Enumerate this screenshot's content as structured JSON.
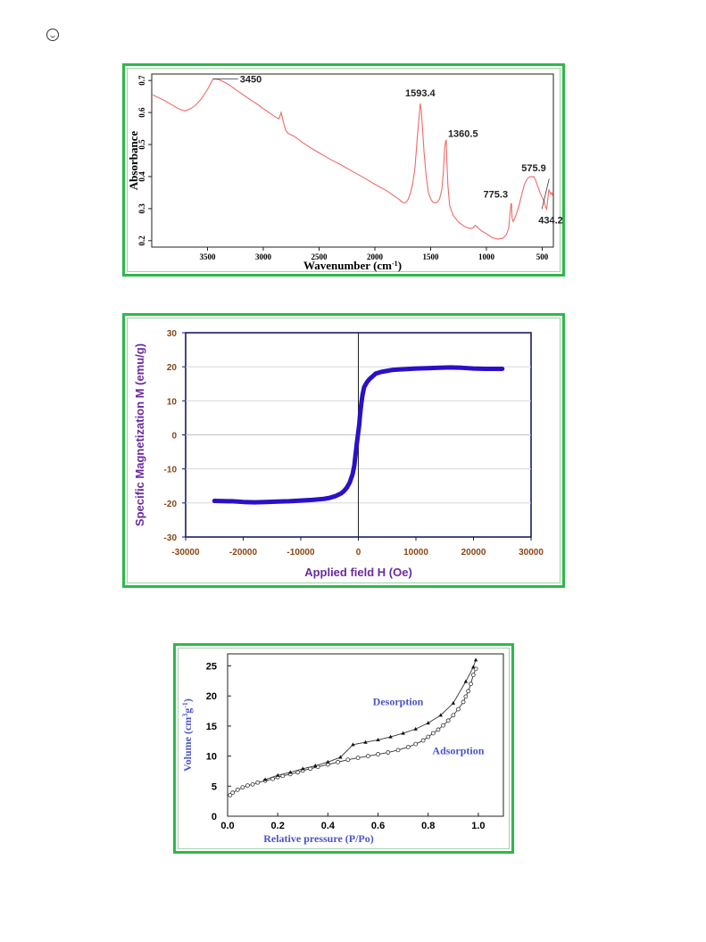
{
  "colors": {
    "frame": "#2fb84a",
    "ftir_line": "#ef6a6a",
    "vsm_line": "#2a10c8",
    "vsm_label": "#6a2a9e",
    "vsm_tick": "#8b4513",
    "bet_label": "#4a55c8"
  },
  "page_icon": "circled-smile-icon",
  "chart_data": [
    {
      "type": "line",
      "xlabel": "Wavenumber (cm",
      "xlabel_sup": "-1",
      "xlabel_end": ")",
      "ylabel": "Absorbance",
      "xlim": [
        4000,
        400
      ],
      "ylim": [
        0.18,
        0.72
      ],
      "x_ticks": [
        3500,
        3000,
        2500,
        2000,
        1500,
        1000,
        500
      ],
      "y_ticks": [
        0.2,
        0.3,
        0.4,
        0.5,
        0.6,
        0.7
      ],
      "x_tick_labels": [
        "3500",
        "3000",
        "2500",
        "2000",
        "1500",
        "1000",
        "500"
      ],
      "y_tick_labels": [
        "0.2",
        "0.3",
        "0.4",
        "0.5",
        "0.6",
        "0.7"
      ],
      "annotations": [
        {
          "text": "3450",
          "x": 3450,
          "y": 0.705
        },
        {
          "text": "1593.4",
          "x": 1593.4,
          "y": 0.628
        },
        {
          "text": "1360.5",
          "x": 1360.5,
          "y": 0.515
        },
        {
          "text": "575.9",
          "x": 575.9,
          "y": 0.4
        },
        {
          "text": "775.3",
          "x": 775.3,
          "y": 0.315
        },
        {
          "text": "434.2",
          "x": 470,
          "y": 0.36
        }
      ],
      "series": [
        {
          "x": [
            3990,
            3950,
            3900,
            3850,
            3800,
            3750,
            3700,
            3650,
            3600,
            3550,
            3500,
            3450,
            3400,
            3350,
            3300,
            3250,
            3200,
            3150,
            3100,
            3050,
            3000,
            2950,
            2900,
            2860,
            2840,
            2820,
            2800,
            2780,
            2750,
            2720,
            2700,
            2650,
            2600,
            2500,
            2400,
            2300,
            2200,
            2100,
            2000,
            1900,
            1850,
            1800,
            1780,
            1760,
            1740,
            1720,
            1700,
            1680,
            1660,
            1640,
            1620,
            1600,
            1593.4,
            1585,
            1575,
            1560,
            1540,
            1520,
            1500,
            1480,
            1460,
            1440,
            1420,
            1400,
            1385,
            1375,
            1365,
            1360.5,
            1355,
            1345,
            1330,
            1300,
            1250,
            1200,
            1150,
            1120,
            1100,
            1080,
            1050,
            1000,
            950,
            900,
            850,
            820,
            800,
            790,
            780,
            775.3,
            770,
            760,
            740,
            720,
            700,
            680,
            660,
            640,
            620,
            600,
            580,
            575.9,
            560,
            540,
            520,
            500,
            480,
            470,
            460,
            450,
            440,
            434.2,
            425,
            415,
            405
          ],
          "y": [
            0.655,
            0.648,
            0.64,
            0.63,
            0.62,
            0.61,
            0.605,
            0.612,
            0.625,
            0.645,
            0.672,
            0.705,
            0.703,
            0.695,
            0.685,
            0.672,
            0.66,
            0.648,
            0.636,
            0.625,
            0.612,
            0.6,
            0.588,
            0.58,
            0.6,
            0.57,
            0.545,
            0.535,
            0.53,
            0.525,
            0.52,
            0.507,
            0.495,
            0.474,
            0.454,
            0.436,
            0.416,
            0.397,
            0.376,
            0.357,
            0.345,
            0.333,
            0.328,
            0.322,
            0.318,
            0.32,
            0.33,
            0.35,
            0.38,
            0.43,
            0.52,
            0.6,
            0.628,
            0.61,
            0.56,
            0.48,
            0.4,
            0.35,
            0.33,
            0.32,
            0.318,
            0.32,
            0.33,
            0.36,
            0.42,
            0.49,
            0.51,
            0.515,
            0.45,
            0.37,
            0.31,
            0.28,
            0.258,
            0.245,
            0.238,
            0.24,
            0.248,
            0.242,
            0.232,
            0.222,
            0.21,
            0.205,
            0.208,
            0.22,
            0.24,
            0.28,
            0.315,
            0.315,
            0.27,
            0.26,
            0.275,
            0.295,
            0.32,
            0.35,
            0.375,
            0.39,
            0.398,
            0.4,
            0.399,
            0.4,
            0.39,
            0.37,
            0.35,
            0.335,
            0.32,
            0.305,
            0.298,
            0.33,
            0.36,
            0.355,
            0.345,
            0.35,
            0.34
          ]
        }
      ]
    },
    {
      "type": "line",
      "xlabel": "Applied field H (Oe)",
      "ylabel": "Specific Magnetization M (emu/g)",
      "xlim": [
        -30000,
        30000
      ],
      "ylim": [
        -30,
        30
      ],
      "x_ticks": [
        -30000,
        -20000,
        -10000,
        0,
        10000,
        20000,
        30000
      ],
      "y_ticks": [
        -30,
        -20,
        -10,
        0,
        10,
        20,
        30
      ],
      "x_tick_labels": [
        "-30000",
        "-20000",
        "-10000",
        "0",
        "10000",
        "20000",
        "30000"
      ],
      "y_tick_labels": [
        "-30",
        "-20",
        "-10",
        "0",
        "10",
        "20",
        "30"
      ],
      "grid": true,
      "series": [
        {
          "x": [
            -25000,
            -22000,
            -20000,
            -18000,
            -16000,
            -14000,
            -12000,
            -10000,
            -8000,
            -6000,
            -5000,
            -4000,
            -3000,
            -2500,
            -2000,
            -1500,
            -1000,
            -700,
            -500,
            -300,
            -150,
            0,
            150,
            300,
            500,
            700,
            1000,
            1500,
            2000,
            2500,
            3000,
            4000,
            5000,
            6000,
            8000,
            10000,
            12000,
            14000,
            16000,
            18000,
            20000,
            22000,
            25000
          ],
          "y": [
            -19.4,
            -19.5,
            -19.7,
            -19.8,
            -19.7,
            -19.6,
            -19.5,
            -19.3,
            -19.1,
            -18.8,
            -18.5,
            -18.0,
            -17.2,
            -16.5,
            -15.5,
            -14.0,
            -11.5,
            -9.0,
            -6.0,
            -3.0,
            -1.0,
            1.0,
            3.0,
            6.0,
            9.0,
            11.5,
            14.0,
            15.5,
            16.5,
            17.2,
            18.0,
            18.5,
            18.8,
            19.1,
            19.3,
            19.5,
            19.6,
            19.7,
            19.8,
            19.7,
            19.5,
            19.4,
            19.4
          ]
        }
      ]
    },
    {
      "type": "line",
      "xlabel": "Relative pressure (P/Po)",
      "ylabel": "Volume (cm",
      "ylabel_sup1": "3",
      "ylabel_mid": "g",
      "ylabel_sup2": "-1",
      "ylabel_end": ")",
      "xlim": [
        0.0,
        1.1
      ],
      "ylim": [
        0,
        27
      ],
      "x_ticks": [
        0.0,
        0.2,
        0.4,
        0.6,
        0.8,
        1.0
      ],
      "y_ticks": [
        0,
        5,
        10,
        15,
        20,
        25
      ],
      "x_tick_labels": [
        "0.0",
        "0.2",
        "0.4",
        "0.6",
        "0.8",
        "1.0"
      ],
      "y_tick_labels": [
        "0",
        "5",
        "10",
        "15",
        "20",
        "25"
      ],
      "labels": [
        {
          "text": "Desorption",
          "x": 0.68,
          "y": 18.5
        },
        {
          "text": "Adsorption",
          "x": 0.92,
          "y": 10.3
        }
      ],
      "series": [
        {
          "name": "Adsorption",
          "x": [
            0.01,
            0.02,
            0.04,
            0.06,
            0.08,
            0.1,
            0.12,
            0.15,
            0.18,
            0.2,
            0.22,
            0.25,
            0.28,
            0.3,
            0.33,
            0.36,
            0.4,
            0.44,
            0.48,
            0.52,
            0.56,
            0.6,
            0.64,
            0.68,
            0.72,
            0.75,
            0.78,
            0.8,
            0.82,
            0.84,
            0.86,
            0.88,
            0.9,
            0.92,
            0.94,
            0.95,
            0.96,
            0.97,
            0.98,
            0.99
          ],
          "y": [
            3.5,
            3.9,
            4.4,
            4.8,
            5.1,
            5.3,
            5.6,
            5.9,
            6.2,
            6.5,
            6.7,
            7.0,
            7.3,
            7.6,
            7.9,
            8.2,
            8.6,
            9.0,
            9.4,
            9.7,
            10.0,
            10.3,
            10.6,
            11.0,
            11.5,
            12.0,
            12.6,
            13.2,
            13.8,
            14.4,
            15.1,
            15.9,
            16.8,
            17.8,
            19.0,
            19.9,
            20.8,
            22.0,
            23.5,
            24.5
          ]
        },
        {
          "name": "Desorption",
          "x": [
            0.15,
            0.2,
            0.25,
            0.3,
            0.35,
            0.4,
            0.45,
            0.5,
            0.55,
            0.6,
            0.65,
            0.7,
            0.75,
            0.8,
            0.85,
            0.9,
            0.95,
            0.98,
            0.99
          ],
          "y": [
            6.1,
            6.8,
            7.3,
            7.9,
            8.4,
            9.0,
            9.8,
            11.9,
            12.3,
            12.7,
            13.2,
            13.8,
            14.5,
            15.5,
            16.8,
            18.8,
            22.4,
            24.8,
            26.0
          ]
        }
      ]
    }
  ]
}
